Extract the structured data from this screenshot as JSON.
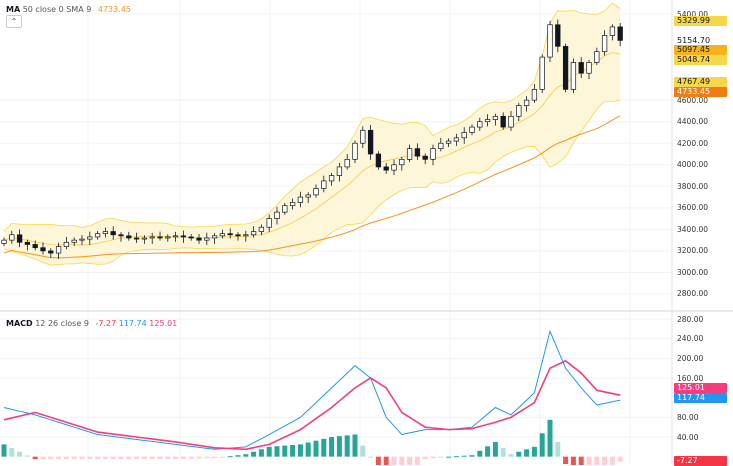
{
  "legend_top": {
    "name": "MA",
    "params": "50 close 0 SMA 9",
    "value": "4733.45",
    "value_color": "#f7931a"
  },
  "legend_macd": {
    "name": "MACD",
    "params": "12 26 close 9",
    "v1": "-7.27",
    "v2": "117.74",
    "v3": "125.01"
  },
  "collapse_icon": "chevron-up-icon",
  "price_axis": {
    "ticks": [
      "5400.00",
      "4600.00",
      "4400.00",
      "4200.00",
      "4000.00",
      "3800.00",
      "3600.00",
      "3400.00",
      "3200.00",
      "3000.00",
      "2800.00"
    ],
    "range": [
      2670,
      5530
    ]
  },
  "price_tags": [
    {
      "text": "5329.99",
      "bg": "#f5d84a",
      "fg": "#131722",
      "value": 5329.99
    },
    {
      "text": "5154.70",
      "bg": "#ffffff",
      "fg": "#131722",
      "value": 5154.7
    },
    {
      "text": "5097.45",
      "bg": "#f7b21a",
      "fg": "#131722",
      "value": 5097.45
    },
    {
      "text": "5048.74",
      "bg": "#f5d84a",
      "fg": "#131722",
      "value": 5048.74
    },
    {
      "text": "4767.49",
      "bg": "#f5d84a",
      "fg": "#131722",
      "value": 4767.49
    },
    {
      "text": "4733.45",
      "bg": "#ef7d12",
      "fg": "#ffffff",
      "value": 4733.45
    }
  ],
  "macd_axis": {
    "ticks": [
      "280.00",
      "240.00",
      "200.00",
      "160.00",
      "80.00",
      "40.00"
    ],
    "range": [
      -8,
      282
    ]
  },
  "macd_tags": [
    {
      "text": "125.01",
      "bg": "#f23e7d",
      "fg": "#ffffff",
      "value": 125.01
    },
    {
      "text": "117.74",
      "bg": "#2196f3",
      "fg": "#ffffff",
      "value": 117.74
    },
    {
      "text": "-7.27",
      "bg": "#f23645",
      "fg": "#ffffff",
      "value": -7.27
    }
  ],
  "colors": {
    "up": "#ffffff",
    "down": "#131722",
    "ma": "#f7931a",
    "band": "#f5d84a",
    "macd": "#2196f3",
    "signal": "#f23e7d",
    "hist_up": "#26a69a",
    "hist_down": "#ef5350"
  },
  "chart_data": {
    "type": "candlestick",
    "closes": [
      3300,
      3350,
      3280,
      3260,
      3230,
      3200,
      3180,
      3240,
      3280,
      3300,
      3310,
      3330,
      3360,
      3380,
      3350,
      3340,
      3320,
      3310,
      3320,
      3330,
      3320,
      3330,
      3340,
      3330,
      3320,
      3300,
      3320,
      3340,
      3360,
      3350,
      3340,
      3350,
      3380,
      3420,
      3500,
      3560,
      3620,
      3650,
      3700,
      3720,
      3780,
      3850,
      3900,
      3980,
      4050,
      4200,
      4320,
      4100,
      3980,
      3950,
      4000,
      4050,
      4150,
      4080,
      4050,
      4150,
      4200,
      4220,
      4250,
      4300,
      4350,
      4400,
      4420,
      4450,
      4350,
      4450,
      4550,
      4600,
      4700,
      5000,
      5300,
      5100,
      4700,
      4950,
      4850,
      4950,
      5050,
      5200,
      5280,
      5154.7
    ],
    "macd_keypoints": [
      [
        0,
        100
      ],
      [
        4,
        85
      ],
      [
        8,
        65
      ],
      [
        12,
        45
      ],
      [
        17,
        35
      ],
      [
        22,
        25
      ],
      [
        27,
        15
      ],
      [
        31,
        20
      ],
      [
        34,
        45
      ],
      [
        38,
        80
      ],
      [
        42,
        140
      ],
      [
        45,
        185
      ],
      [
        47,
        160
      ],
      [
        49,
        80
      ],
      [
        51,
        45
      ],
      [
        54,
        55
      ],
      [
        57,
        55
      ],
      [
        60,
        60
      ],
      [
        63,
        100
      ],
      [
        65,
        85
      ],
      [
        68,
        130
      ],
      [
        70,
        255
      ],
      [
        72,
        180
      ],
      [
        74,
        140
      ],
      [
        76,
        105
      ],
      [
        79,
        115
      ]
    ],
    "signal_keypoints": [
      [
        0,
        75
      ],
      [
        4,
        90
      ],
      [
        8,
        70
      ],
      [
        12,
        50
      ],
      [
        17,
        40
      ],
      [
        22,
        30
      ],
      [
        27,
        18
      ],
      [
        31,
        15
      ],
      [
        34,
        25
      ],
      [
        38,
        55
      ],
      [
        42,
        100
      ],
      [
        45,
        140
      ],
      [
        47,
        160
      ],
      [
        49,
        140
      ],
      [
        51,
        90
      ],
      [
        54,
        60
      ],
      [
        57,
        55
      ],
      [
        60,
        57
      ],
      [
        63,
        70
      ],
      [
        65,
        80
      ],
      [
        68,
        110
      ],
      [
        70,
        180
      ],
      [
        72,
        195
      ],
      [
        74,
        170
      ],
      [
        76,
        135
      ],
      [
        79,
        125
      ]
    ]
  }
}
